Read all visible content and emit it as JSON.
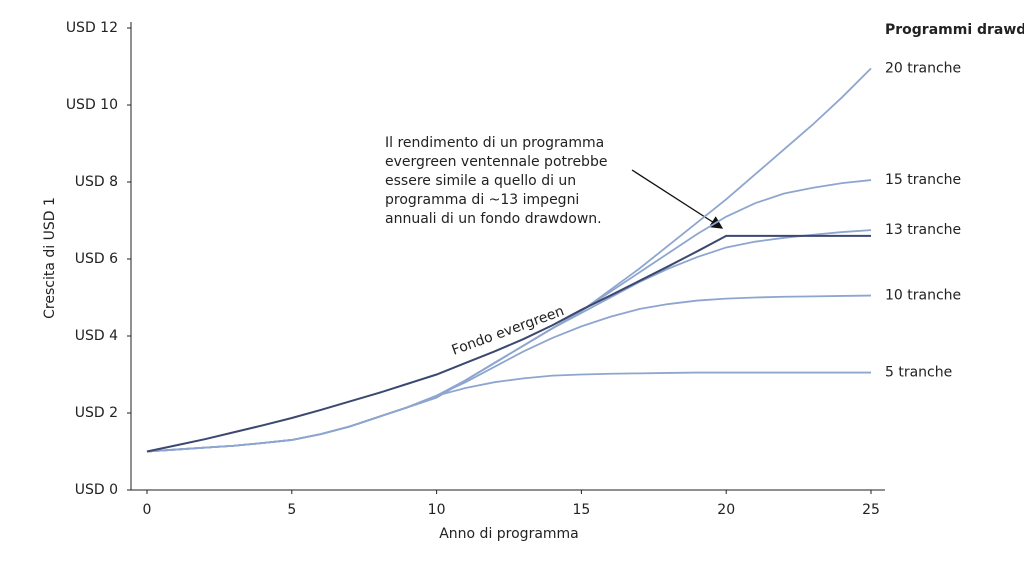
{
  "chart_data": {
    "type": "line",
    "legend_title": "Programmi drawdown",
    "x_label": "Anno di programma",
    "y_label": "Crescita di USD 1",
    "annotation": [
      "Il rendimento di un programma",
      "evergreen ventennale potrebbe",
      "essere simile a quello di un",
      "programma di ~13 impegni",
      "annuali di un fondo drawdown."
    ],
    "x": [
      0,
      1,
      2,
      3,
      4,
      5,
      6,
      7,
      8,
      9,
      10,
      11,
      12,
      13,
      14,
      15,
      16,
      17,
      18,
      19,
      20,
      21,
      22,
      23,
      24,
      25
    ],
    "xlim": [
      0,
      25
    ],
    "xticks": [
      0,
      5,
      10,
      15,
      20,
      25
    ],
    "ylim": [
      0,
      12
    ],
    "yticks": [
      {
        "value": 0,
        "label": "USD 0"
      },
      {
        "value": 2,
        "label": "USD 2"
      },
      {
        "value": 4,
        "label": "USD 4"
      },
      {
        "value": 6,
        "label": "USD 6"
      },
      {
        "value": 8,
        "label": "USD 8"
      },
      {
        "value": 10,
        "label": "USD 10"
      },
      {
        "value": 12,
        "label": "USD 12"
      }
    ],
    "grid": false,
    "series": [
      {
        "name": "Fondo evergreen",
        "color": "#3b4870",
        "values": [
          1.0,
          1.16,
          1.32,
          1.5,
          1.68,
          1.87,
          2.08,
          2.3,
          2.52,
          2.76,
          3.0,
          3.3,
          3.6,
          3.92,
          4.28,
          4.68,
          5.05,
          5.43,
          5.81,
          6.2,
          6.6,
          6.6,
          6.6,
          6.6,
          6.6,
          6.6
        ]
      },
      {
        "name": "20 tranche",
        "color": "#8ea6cf",
        "values": [
          1.0,
          1.05,
          1.1,
          1.15,
          1.22,
          1.3,
          1.45,
          1.65,
          1.9,
          2.15,
          2.4,
          2.85,
          3.3,
          3.75,
          4.2,
          4.65,
          5.2,
          5.75,
          6.35,
          6.95,
          7.55,
          8.2,
          8.85,
          9.5,
          10.2,
          10.95
        ]
      },
      {
        "name": "15 tranche",
        "color": "#8ea6cf",
        "values": [
          1.0,
          1.05,
          1.1,
          1.15,
          1.22,
          1.3,
          1.45,
          1.65,
          1.9,
          2.15,
          2.4,
          2.85,
          3.3,
          3.75,
          4.2,
          4.65,
          5.15,
          5.65,
          6.15,
          6.65,
          7.1,
          7.45,
          7.7,
          7.85,
          7.97,
          8.05
        ]
      },
      {
        "name": "13 tranche",
        "color": "#8ea6cf",
        "values": [
          1.0,
          1.05,
          1.1,
          1.15,
          1.22,
          1.3,
          1.45,
          1.65,
          1.9,
          2.15,
          2.45,
          2.85,
          3.3,
          3.75,
          4.2,
          4.6,
          5.0,
          5.4,
          5.75,
          6.05,
          6.3,
          6.45,
          6.55,
          6.63,
          6.7,
          6.75
        ]
      },
      {
        "name": "10 tranche",
        "color": "#8ea6cf",
        "values": [
          1.0,
          1.05,
          1.1,
          1.15,
          1.22,
          1.3,
          1.45,
          1.65,
          1.9,
          2.15,
          2.45,
          2.8,
          3.2,
          3.6,
          3.95,
          4.25,
          4.5,
          4.7,
          4.83,
          4.92,
          4.97,
          5.0,
          5.02,
          5.03,
          5.04,
          5.05
        ]
      },
      {
        "name": "5 tranche",
        "color": "#8ea6cf",
        "values": [
          1.0,
          1.05,
          1.1,
          1.15,
          1.22,
          1.3,
          1.45,
          1.65,
          1.9,
          2.15,
          2.45,
          2.65,
          2.8,
          2.9,
          2.97,
          3.0,
          3.02,
          3.03,
          3.04,
          3.05,
          3.05,
          3.05,
          3.05,
          3.05,
          3.05,
          3.05
        ]
      }
    ]
  }
}
